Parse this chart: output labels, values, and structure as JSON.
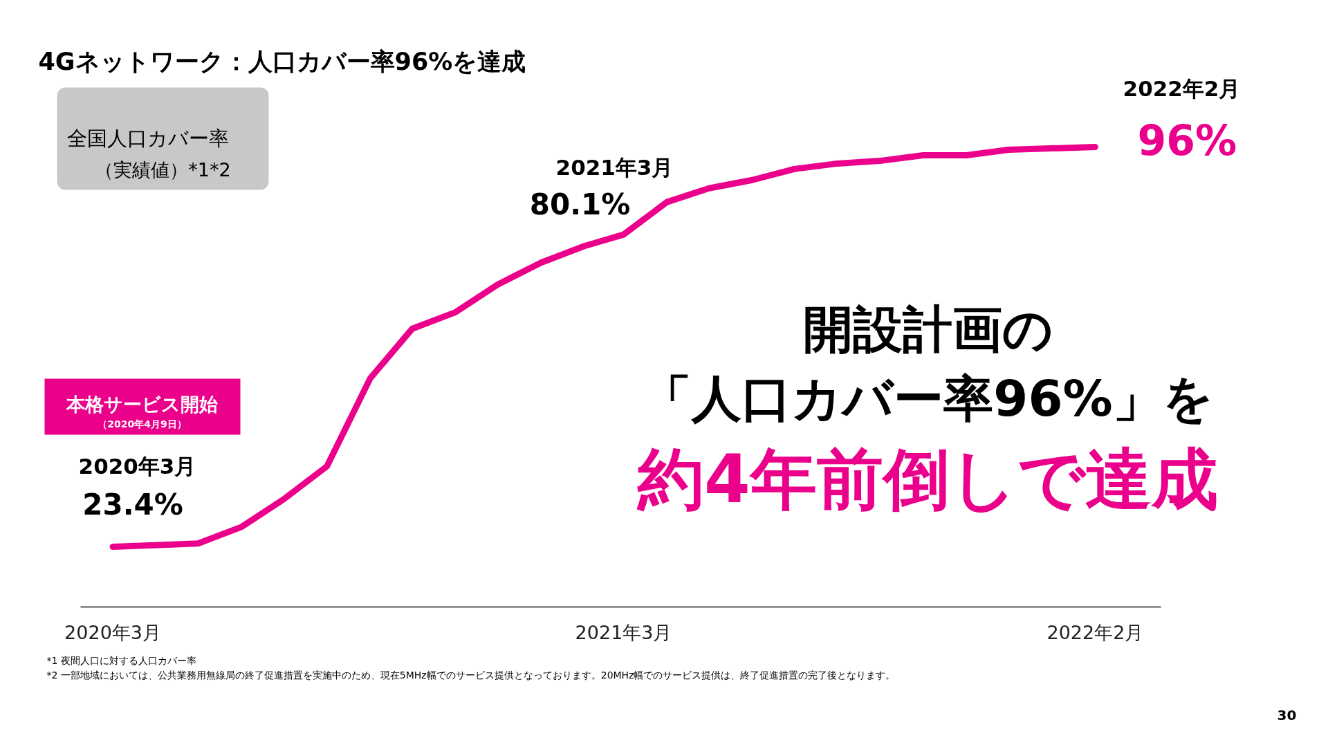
{
  "chart_data": {
    "type": "line",
    "title": "4Gネットワーク：人口カバー率96%を達成",
    "x": [
      "2020-03",
      "2020-05",
      "2020-06",
      "2020-07",
      "2020-08",
      "2020-09",
      "2020-10",
      "2020-11",
      "2020-12",
      "2021-01",
      "2021-02",
      "2021-03",
      "2021-04",
      "2021-05",
      "2021-06",
      "2021-07",
      "2021-08",
      "2021-09",
      "2021-10",
      "2021-11",
      "2021-12",
      "2022-02"
    ],
    "series": [
      {
        "color": "#eb008b",
        "values": [
          23.4,
          24,
          27,
          32,
          38,
          54,
          63,
          66,
          71,
          75,
          78,
          80.1,
          86,
          88.5,
          90,
          92,
          93,
          93.5,
          94.5,
          94.5,
          95.5,
          96
        ],
        "value_labels": [
          "23.4%",
          null,
          null,
          null,
          null,
          null,
          null,
          null,
          null,
          null,
          null,
          "80.1%",
          null,
          null,
          null,
          null,
          null,
          null,
          null,
          null,
          null,
          "96%"
        ]
      }
    ],
    "xlim": [
      "2020-02-07",
      "2022-03-20"
    ],
    "xticks": [
      {
        "value": "2020-03",
        "label": "2020年3月"
      },
      {
        "value": "2021-03",
        "label": "2021年3月"
      },
      {
        "value": "2022-02",
        "label": "2022年2月"
      }
    ],
    "tick_labels": "x",
    "grid": false,
    "marker": "none",
    "line_style": "solid",
    "annotations": [
      "2020年3月",
      "2021年3月",
      "2022年2月",
      "全国人口カバー率",
      "（実績値）*1*2",
      "本格サービス開始",
      "（2020年4月9日）",
      "開設計画の",
      "「人口カバー率96%」を",
      "約4年前倒しで達成",
      "*1 夜間人口に対する人口カバー率",
      "*2 一部地域においては、公共業務用無線局の終了促進措置を実施中のため、現在5MHz幅でのサービス提供となっております。20MHz幅でのサービス提供は、終了促進措置の完了後となります。",
      "30"
    ]
  }
}
